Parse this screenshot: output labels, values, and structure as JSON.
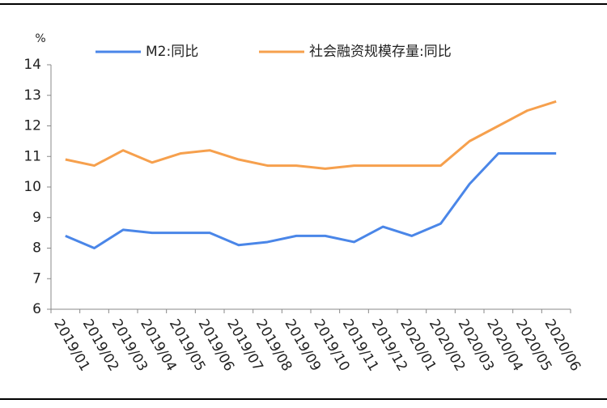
{
  "chart_data": {
    "type": "line",
    "y_unit": "%",
    "categories": [
      "2019/01",
      "2019/02",
      "2019/03",
      "2019/04",
      "2019/05",
      "2019/06",
      "2019/07",
      "2019/08",
      "2019/09",
      "2019/10",
      "2019/11",
      "2019/12",
      "2020/01",
      "2020/02",
      "2020/03",
      "2020/04",
      "2020/05",
      "2020/06"
    ],
    "series": [
      {
        "name": "M2:同比",
        "color": "#4a86e8",
        "values": [
          8.4,
          8.0,
          8.6,
          8.5,
          8.5,
          8.5,
          8.1,
          8.2,
          8.4,
          8.4,
          8.2,
          8.7,
          8.4,
          8.8,
          10.1,
          11.1,
          11.1,
          11.1
        ]
      },
      {
        "name": "社会融资规模存量:同比",
        "color": "#f6a04d",
        "values": [
          10.9,
          10.7,
          11.2,
          10.8,
          11.1,
          11.2,
          10.9,
          10.7,
          10.7,
          10.6,
          10.7,
          10.7,
          10.7,
          10.7,
          11.5,
          12.0,
          12.5,
          12.8
        ]
      }
    ],
    "ylim": [
      6,
      14
    ],
    "yticks": [
      6,
      7,
      8,
      9,
      10,
      11,
      12,
      13,
      14
    ],
    "legend": "top"
  }
}
